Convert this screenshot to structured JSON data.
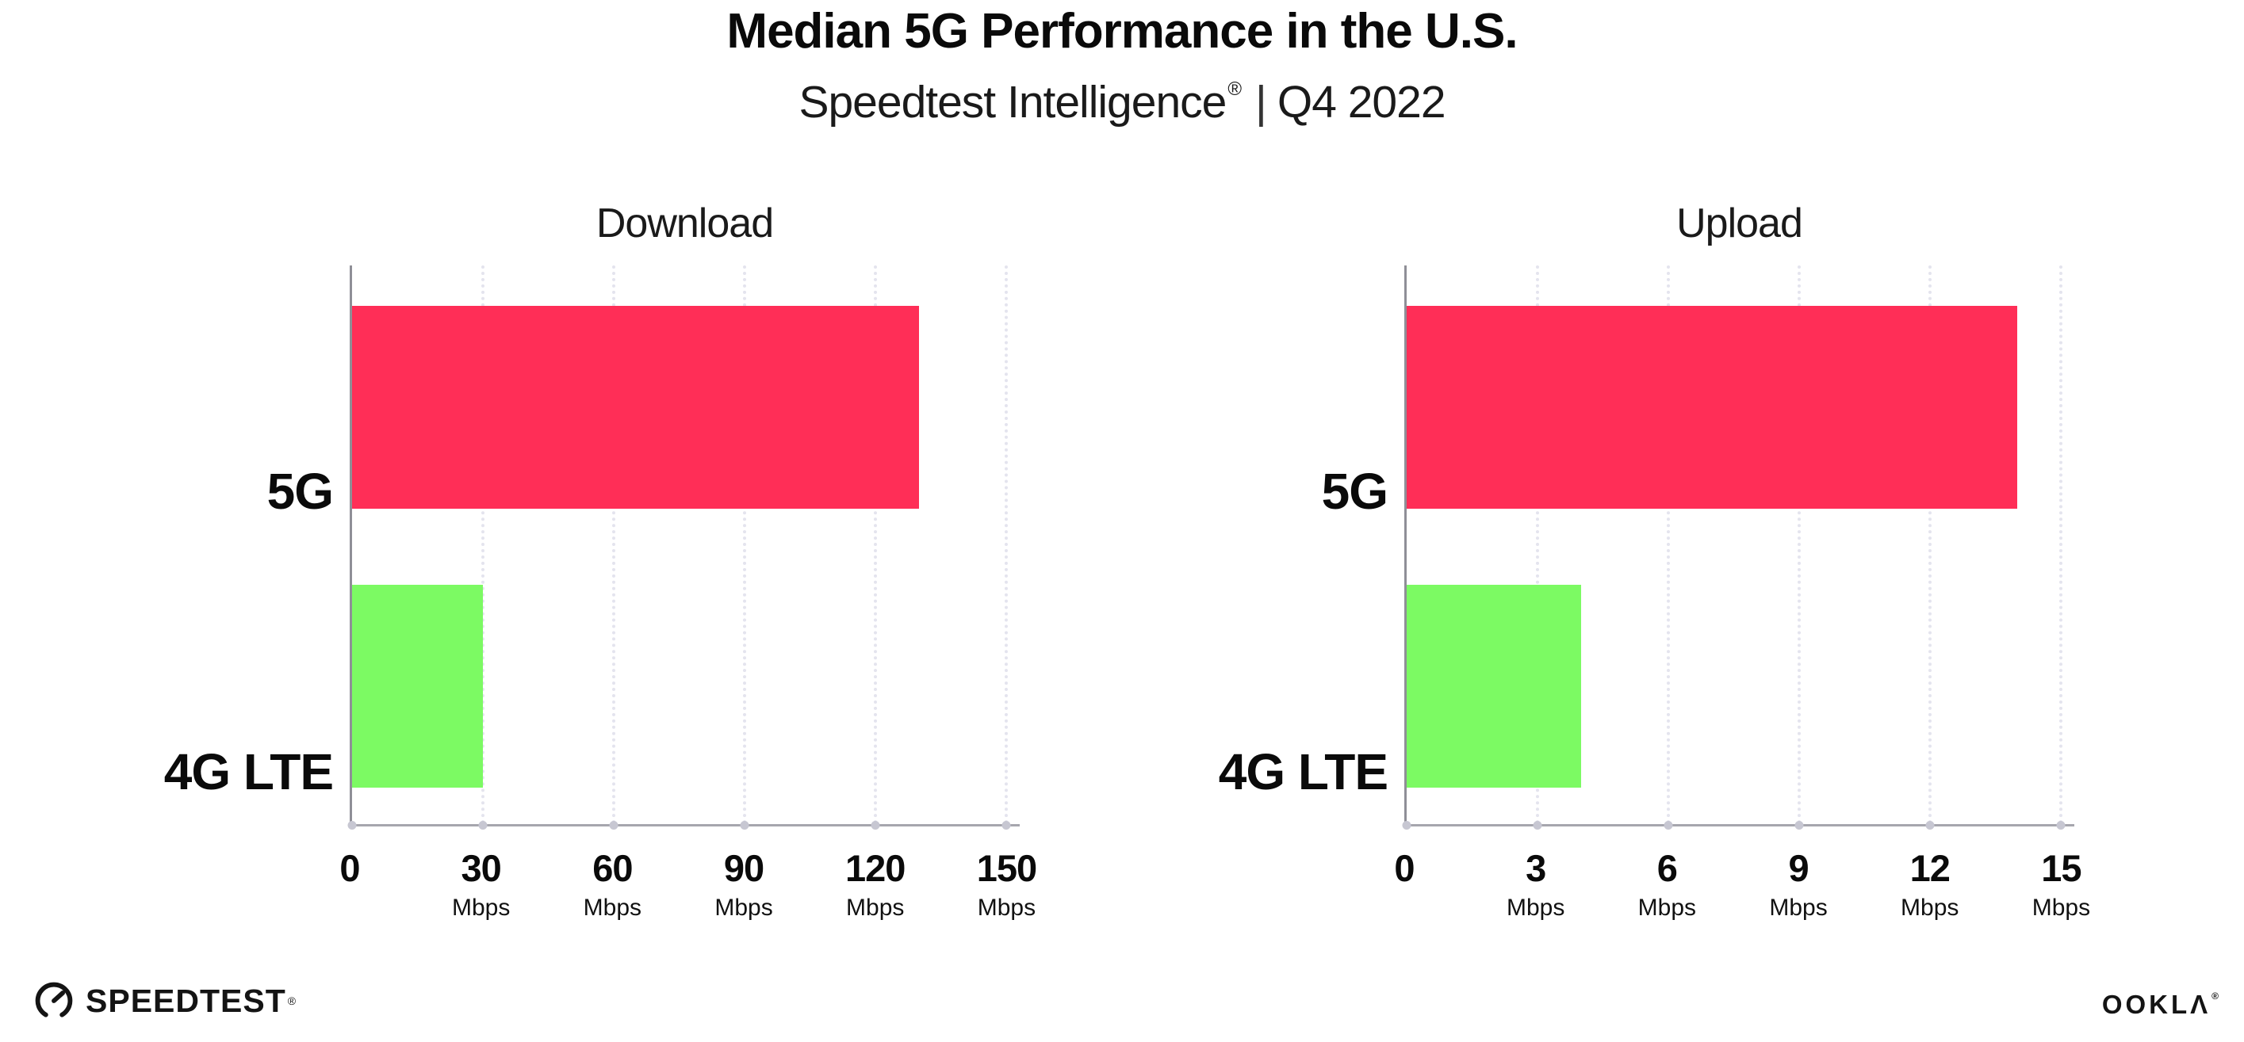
{
  "header": {
    "title": "Median 5G Performance in the U.S.",
    "subtitle_brand": "Speedtest Intelligence",
    "subtitle_reg": "®",
    "subtitle_separator": "|",
    "subtitle_period": "Q4 2022"
  },
  "chart_data": [
    {
      "type": "bar",
      "orientation": "horizontal",
      "title": "Download",
      "categories": [
        "5G",
        "4G LTE"
      ],
      "values": [
        130,
        30
      ],
      "unit": "Mbps",
      "colors": [
        "#FF2E57",
        "#7CFA63"
      ],
      "xticks": [
        0,
        30,
        60,
        90,
        120,
        150
      ],
      "xlim": [
        0,
        153
      ],
      "grid": "vertical-dotted",
      "legend": "none"
    },
    {
      "type": "bar",
      "orientation": "horizontal",
      "title": "Upload",
      "categories": [
        "5G",
        "4G LTE"
      ],
      "values": [
        14,
        4
      ],
      "unit": "Mbps",
      "colors": [
        "#FF2E57",
        "#7CFA63"
      ],
      "xticks": [
        0,
        3,
        6,
        9,
        12,
        15
      ],
      "xlim": [
        0,
        15.3
      ],
      "grid": "vertical-dotted",
      "legend": "none"
    }
  ],
  "footer": {
    "speedtest_logo_text": "SPEEDTEST",
    "speedtest_trademark": "®",
    "ookla_logo_text": "OOKLΛ",
    "ookla_trademark": "®"
  },
  "colors": {
    "bar_5g": "#FF2E57",
    "bar_4g_lte": "#7CFA63",
    "gridline": "#E4E4EE",
    "axis": "#A6A6AE",
    "text": "#0A0A0A"
  }
}
